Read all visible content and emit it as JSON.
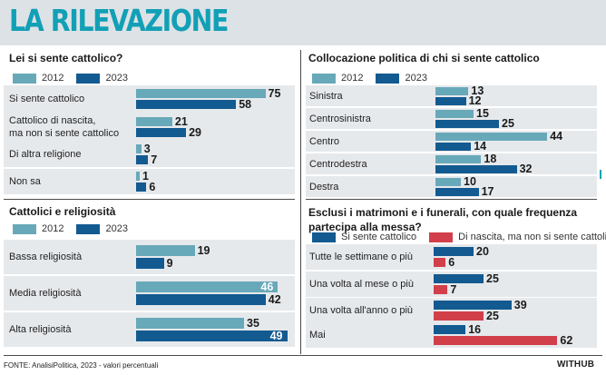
{
  "page_title": "LA RILEVAZIONE",
  "colors": {
    "c2012": "#68a9b9",
    "c2023": "#135a91",
    "catholic": "#135a91",
    "non_practicing": "#d1404a",
    "title": "#12a0b6"
  },
  "chart_data": [
    {
      "id": "sente-cattolico",
      "type": "bar",
      "orientation": "horizontal",
      "title": "Lei si sente cattolico?",
      "series_names": [
        "2012",
        "2023"
      ],
      "categories": [
        [
          "Si sente cattolico"
        ],
        [
          "Cattolico di nascita,",
          "ma non si sente cattolico"
        ],
        [
          "Di altra religione"
        ],
        [
          "Non sa"
        ]
      ],
      "series": [
        {
          "name": "2012",
          "values": [
            75,
            21,
            3,
            1
          ]
        },
        {
          "name": "2023",
          "values": [
            58,
            29,
            7,
            6
          ]
        }
      ]
    },
    {
      "id": "collocazione-politica",
      "type": "bar",
      "orientation": "horizontal",
      "title": "Collocazione politica di chi si sente cattolico",
      "series_names": [
        "2012",
        "2023"
      ],
      "categories": [
        [
          "Sinistra"
        ],
        [
          "Centrosinistra"
        ],
        [
          "Centro"
        ],
        [
          "Centrodestra"
        ],
        [
          "Destra"
        ]
      ],
      "series": [
        {
          "name": "2012",
          "values": [
            13,
            15,
            44,
            18,
            10
          ]
        },
        {
          "name": "2023",
          "values": [
            12,
            25,
            14,
            32,
            17
          ]
        }
      ]
    },
    {
      "id": "religiosita",
      "type": "bar",
      "orientation": "horizontal",
      "title": "Cattolici e religiosità",
      "series_names": [
        "2012",
        "2023"
      ],
      "categories": [
        [
          "Bassa religiosità"
        ],
        [
          "Media religiosità"
        ],
        [
          "Alta religiosità"
        ]
      ],
      "series": [
        {
          "name": "2012",
          "values": [
            19,
            46,
            35
          ]
        },
        {
          "name": "2023",
          "values": [
            9,
            42,
            49
          ]
        }
      ]
    },
    {
      "id": "frequenza-messa",
      "type": "bar",
      "orientation": "horizontal",
      "title": "Esclusi i matrimoni e i funerali, con quale frequenza partecipa alla messa?",
      "series_names": [
        "Si sente cattolico",
        "Di nascita, ma non si sente cattolico"
      ],
      "categories": [
        [
          "Tutte le settimane o più"
        ],
        [
          "Una volta al mese o più"
        ],
        [
          "Una volta all'anno o più"
        ],
        [
          "Mai"
        ]
      ],
      "series": [
        {
          "name": "Si sente cattolico",
          "values": [
            20,
            25,
            39,
            16
          ]
        },
        {
          "name": "Di nascita, ma non si sente cattolico",
          "values": [
            6,
            7,
            25,
            62
          ]
        }
      ]
    }
  ],
  "footer": {
    "source": "FONTE: AnalisiPolitica, 2023 - valori percentuali",
    "brand": "WITHUB"
  }
}
